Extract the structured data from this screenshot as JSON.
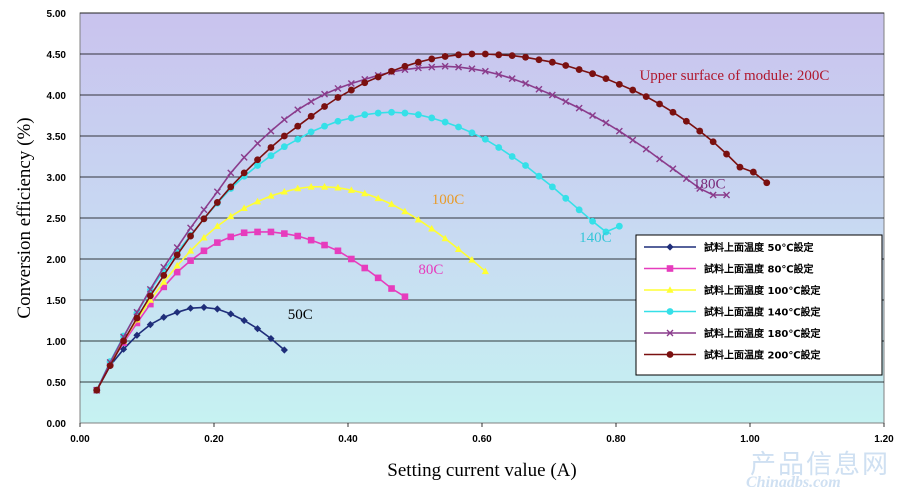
{
  "chart_data": {
    "type": "line",
    "xlabel": "Setting current value (A)",
    "ylabel": "Conversion efficiency (%)",
    "xlim": [
      0,
      1.2
    ],
    "ylim": [
      0,
      5
    ],
    "x_ticks": [
      "0.00",
      "0.20",
      "0.40",
      "0.60",
      "0.80",
      "1.00",
      "1.20"
    ],
    "y_ticks": [
      "0.00",
      "0.50",
      "1.00",
      "1.50",
      "2.00",
      "2.50",
      "3.00",
      "3.50",
      "4.00",
      "4.50",
      "5.00"
    ],
    "grid": "horizontal",
    "legend_position": "right",
    "series": [
      {
        "name": "試料上面温度 50℃設定",
        "label": "50C",
        "color": "#1f2e7a",
        "marker": "diamond",
        "x": [
          0.025,
          0.045,
          0.065,
          0.085,
          0.105,
          0.125,
          0.145,
          0.165,
          0.185,
          0.205,
          0.225,
          0.245,
          0.265,
          0.285,
          0.305
        ],
        "y": [
          0.4,
          0.7,
          0.9,
          1.07,
          1.2,
          1.29,
          1.35,
          1.4,
          1.41,
          1.39,
          1.33,
          1.25,
          1.15,
          1.03,
          0.89
        ]
      },
      {
        "name": "試料上面温度 80℃設定",
        "label": "80C",
        "color": "#e63cbd",
        "marker": "square",
        "x": [
          0.025,
          0.045,
          0.065,
          0.085,
          0.105,
          0.125,
          0.145,
          0.165,
          0.185,
          0.205,
          0.225,
          0.245,
          0.265,
          0.285,
          0.305,
          0.325,
          0.345,
          0.365,
          0.385,
          0.405,
          0.425,
          0.445,
          0.465,
          0.485
        ],
        "y": [
          0.4,
          0.72,
          0.98,
          1.22,
          1.45,
          1.66,
          1.84,
          1.98,
          2.1,
          2.2,
          2.27,
          2.32,
          2.33,
          2.33,
          2.31,
          2.28,
          2.23,
          2.17,
          2.1,
          2.0,
          1.89,
          1.77,
          1.64,
          1.54
        ]
      },
      {
        "name": "試料上面温度 100℃設定",
        "label": "100C",
        "color": "#ffff33",
        "marker": "triangle",
        "label_color": "#e89b2a",
        "x": [
          0.025,
          0.045,
          0.065,
          0.085,
          0.105,
          0.125,
          0.145,
          0.165,
          0.185,
          0.205,
          0.225,
          0.245,
          0.265,
          0.285,
          0.305,
          0.325,
          0.345,
          0.365,
          0.385,
          0.405,
          0.425,
          0.445,
          0.465,
          0.485,
          0.505,
          0.525,
          0.545,
          0.565,
          0.585,
          0.605
        ],
        "y": [
          0.4,
          0.72,
          1.0,
          1.26,
          1.5,
          1.72,
          1.92,
          2.1,
          2.26,
          2.4,
          2.52,
          2.62,
          2.7,
          2.77,
          2.82,
          2.86,
          2.88,
          2.88,
          2.87,
          2.84,
          2.8,
          2.74,
          2.67,
          2.58,
          2.48,
          2.37,
          2.25,
          2.12,
          1.99,
          1.85
        ]
      },
      {
        "name": "試料上面温度 140℃設定",
        "label": "140C",
        "color": "#35e0e8",
        "marker": "circle",
        "x": [
          0.025,
          0.045,
          0.065,
          0.085,
          0.105,
          0.125,
          0.145,
          0.165,
          0.185,
          0.205,
          0.225,
          0.245,
          0.265,
          0.285,
          0.305,
          0.325,
          0.345,
          0.365,
          0.385,
          0.405,
          0.425,
          0.445,
          0.465,
          0.485,
          0.505,
          0.525,
          0.545,
          0.565,
          0.585,
          0.605,
          0.625,
          0.645,
          0.665,
          0.685,
          0.705,
          0.725,
          0.745,
          0.765,
          0.785,
          0.805
        ],
        "y": [
          0.4,
          0.75,
          1.06,
          1.34,
          1.62,
          1.86,
          2.08,
          2.29,
          2.49,
          2.68,
          2.86,
          3.01,
          3.14,
          3.26,
          3.37,
          3.46,
          3.55,
          3.62,
          3.68,
          3.72,
          3.76,
          3.78,
          3.79,
          3.78,
          3.76,
          3.72,
          3.67,
          3.61,
          3.54,
          3.46,
          3.36,
          3.25,
          3.14,
          3.01,
          2.88,
          2.74,
          2.6,
          2.46,
          2.33,
          2.4
        ]
      },
      {
        "name": "試料上面温度 180℃設定",
        "label": "180C",
        "color": "#8a3c8c",
        "marker": "x",
        "x": [
          0.025,
          0.045,
          0.065,
          0.085,
          0.105,
          0.125,
          0.145,
          0.165,
          0.185,
          0.205,
          0.225,
          0.245,
          0.265,
          0.285,
          0.305,
          0.325,
          0.345,
          0.365,
          0.385,
          0.405,
          0.425,
          0.445,
          0.465,
          0.485,
          0.505,
          0.525,
          0.545,
          0.565,
          0.585,
          0.605,
          0.625,
          0.645,
          0.665,
          0.685,
          0.705,
          0.725,
          0.745,
          0.765,
          0.785,
          0.805,
          0.825,
          0.845,
          0.865,
          0.885,
          0.905,
          0.925,
          0.945,
          0.965
        ],
        "y": [
          0.4,
          0.74,
          1.05,
          1.35,
          1.63,
          1.9,
          2.14,
          2.38,
          2.6,
          2.82,
          3.05,
          3.24,
          3.41,
          3.56,
          3.7,
          3.82,
          3.92,
          4.01,
          4.08,
          4.14,
          4.19,
          4.24,
          4.28,
          4.31,
          4.33,
          4.34,
          4.35,
          4.34,
          4.32,
          4.29,
          4.25,
          4.2,
          4.14,
          4.07,
          4.0,
          3.92,
          3.84,
          3.75,
          3.66,
          3.56,
          3.45,
          3.34,
          3.22,
          3.1,
          2.98,
          2.86,
          2.78,
          2.78
        ]
      },
      {
        "name": "試料上面温度 200℃設定",
        "label": "Upper surface of module: 200C",
        "color": "#7a1010",
        "marker": "circle",
        "label_color": "#b0182e",
        "x": [
          0.025,
          0.045,
          0.065,
          0.085,
          0.105,
          0.125,
          0.145,
          0.165,
          0.185,
          0.205,
          0.225,
          0.245,
          0.265,
          0.285,
          0.305,
          0.325,
          0.345,
          0.365,
          0.385,
          0.405,
          0.425,
          0.445,
          0.465,
          0.485,
          0.505,
          0.525,
          0.545,
          0.565,
          0.585,
          0.605,
          0.625,
          0.645,
          0.665,
          0.685,
          0.705,
          0.725,
          0.745,
          0.765,
          0.785,
          0.805,
          0.825,
          0.845,
          0.865,
          0.885,
          0.905,
          0.925,
          0.945,
          0.965,
          0.985,
          1.005,
          1.025
        ],
        "y": [
          0.4,
          0.7,
          1.0,
          1.28,
          1.55,
          1.8,
          2.05,
          2.28,
          2.49,
          2.69,
          2.88,
          3.05,
          3.21,
          3.36,
          3.5,
          3.62,
          3.74,
          3.86,
          3.97,
          4.06,
          4.15,
          4.22,
          4.29,
          4.35,
          4.4,
          4.44,
          4.47,
          4.49,
          4.5,
          4.5,
          4.49,
          4.48,
          4.46,
          4.43,
          4.4,
          4.36,
          4.31,
          4.26,
          4.2,
          4.13,
          4.06,
          3.98,
          3.89,
          3.79,
          3.68,
          3.56,
          3.43,
          3.28,
          3.12,
          3.06,
          2.93
        ]
      }
    ],
    "annotations": [
      {
        "text": "50C",
        "x": 0.31,
        "y": 1.27,
        "color": "#000000"
      },
      {
        "text": "80C",
        "x": 0.505,
        "y": 1.82,
        "color": "#e63cbd"
      },
      {
        "text": "100C",
        "x": 0.525,
        "y": 2.67,
        "color": "#e89b2a"
      },
      {
        "text": "140C",
        "x": 0.745,
        "y": 2.21,
        "color": "#35c6d8"
      },
      {
        "text": "180C",
        "x": 0.915,
        "y": 2.86,
        "color": "#7a2a7a"
      },
      {
        "text": "Upper surface of module: 200C",
        "x": 0.835,
        "y": 4.18,
        "color": "#b0182e"
      }
    ]
  },
  "watermark": {
    "cn": "产品信息网",
    "en": "Chinadbs.com"
  }
}
